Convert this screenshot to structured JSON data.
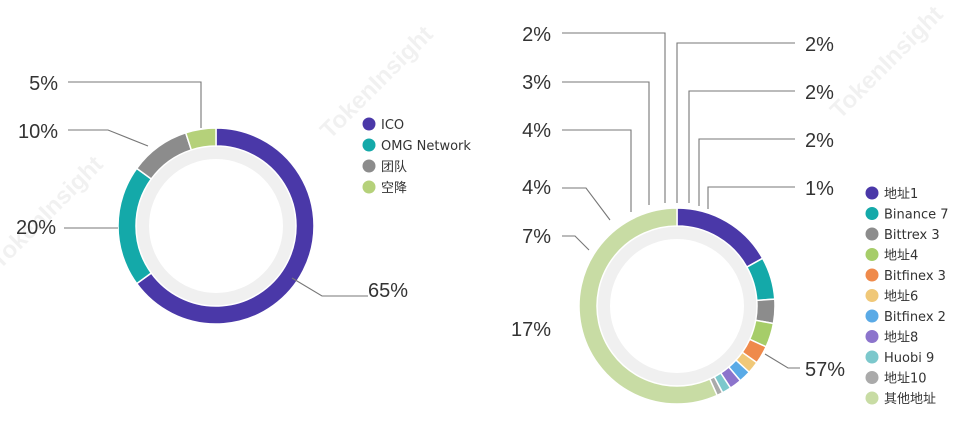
{
  "watermark": "TokenInsight",
  "chart_data": [
    {
      "type": "pie",
      "variant": "donut",
      "series": [
        {
          "name": "ICO",
          "value": 65,
          "label": "65%",
          "color": "#4a38a8"
        },
        {
          "name": "OMG Network",
          "value": 20,
          "label": "20%",
          "color": "#14a9a9"
        },
        {
          "name": "团队",
          "value": 10,
          "label": "10%",
          "color": "#8c8c8c"
        },
        {
          "name": "空降",
          "value": 5,
          "label": "5%",
          "color": "#b5d17a"
        }
      ],
      "legend": "right"
    },
    {
      "type": "pie",
      "variant": "donut",
      "series": [
        {
          "name": "地址1",
          "value": 17,
          "label": "17%",
          "color": "#4a38a8"
        },
        {
          "name": "Binance 7",
          "value": 7,
          "label": "7%",
          "color": "#14a9a9"
        },
        {
          "name": "Bittrex 3",
          "value": 4,
          "label": "4%",
          "color": "#8c8c8c"
        },
        {
          "name": "地址4",
          "value": 4,
          "label": "4%",
          "color": "#a6cd69"
        },
        {
          "name": "Bitfinex 3",
          "value": 3,
          "label": "3%",
          "color": "#ef8a4b"
        },
        {
          "name": "地址6",
          "value": 2,
          "label": "2%",
          "color": "#f0c878"
        },
        {
          "name": "Bitfinex 2",
          "value": 2,
          "label": "2%",
          "color": "#5aaae6"
        },
        {
          "name": "地址8",
          "value": 2,
          "label": "2%",
          "color": "#8c74cc"
        },
        {
          "name": "Huobi 9",
          "value": 1.5,
          "label": "2%",
          "color": "#7cc8cc"
        },
        {
          "name": "地址10",
          "value": 1,
          "label": "1%",
          "color": "#aaaaaa"
        },
        {
          "name": "其他地址",
          "value": 57,
          "label": "57%",
          "color": "#c8dca4"
        }
      ],
      "legend": "right"
    }
  ]
}
